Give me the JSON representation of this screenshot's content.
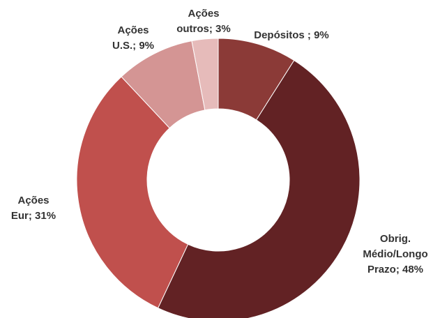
{
  "chart_data": {
    "type": "pie",
    "variant": "donut",
    "title": "",
    "unit": "%",
    "series": [
      {
        "name": "Depósitos",
        "value": 9,
        "color": "#8B3A37",
        "label_lines": [
          "Depósitos ; 9%"
        ]
      },
      {
        "name": "Obrig. Médio/Longo Prazo",
        "value": 48,
        "color": "#622224",
        "label_lines": [
          "Obrig.",
          "Médio/Longo",
          "Prazo; 48%"
        ]
      },
      {
        "name": "Ações Eur",
        "value": 31,
        "color": "#C0504D",
        "label_lines": [
          "Ações",
          "Eur; 31%"
        ]
      },
      {
        "name": "Ações U.S.",
        "value": 9,
        "color": "#D49594",
        "label_lines": [
          "Ações",
          "U.S.; 9%"
        ]
      },
      {
        "name": "Ações outros",
        "value": 3,
        "color": "#E6BBBA",
        "label_lines": [
          "Ações",
          "outros; 3%"
        ]
      }
    ],
    "legend": "none",
    "start": "top",
    "direction": "clockwise"
  }
}
